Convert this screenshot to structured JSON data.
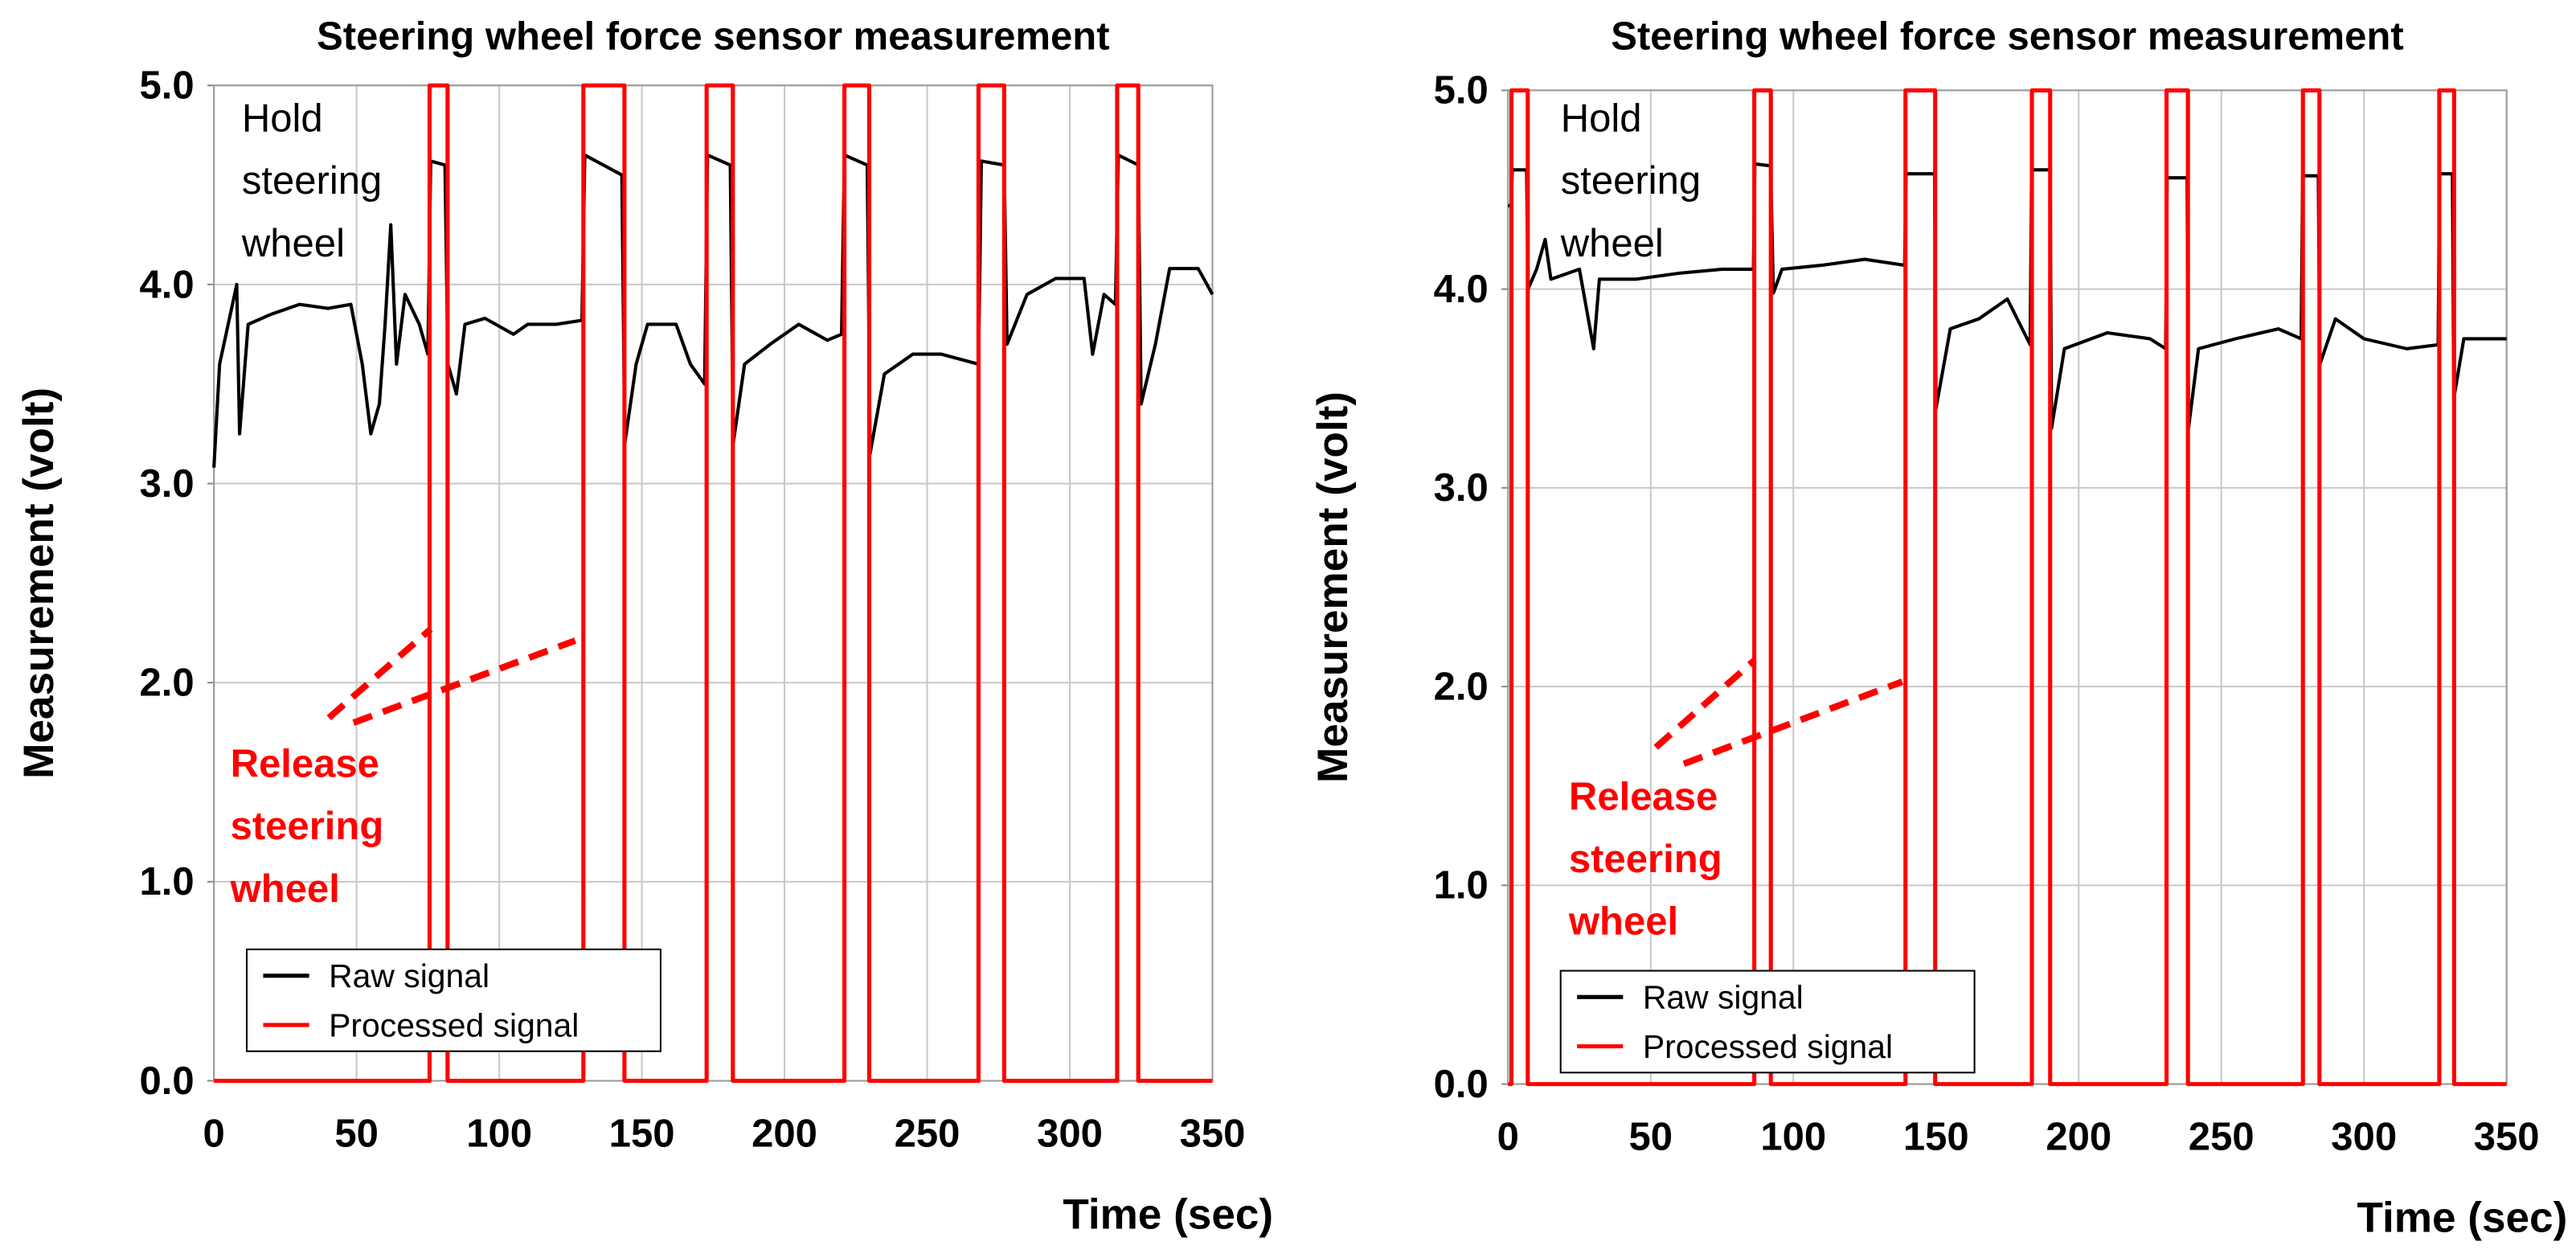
{
  "chart_data": [
    {
      "type": "line",
      "title": "Steering wheel force sensor measurement",
      "x_label": "Time (sec)",
      "y_label": "Measurement (volt)",
      "annotations": [
        {
          "lines": [
            "Hold",
            "steering",
            "wheel"
          ],
          "color": "#000000"
        },
        {
          "lines": [
            "Release",
            "steering",
            "wheel"
          ],
          "color": "#ff0000"
        }
      ],
      "xlim": [
        0,
        350
      ],
      "xticks": [
        0,
        50,
        100,
        150,
        200,
        250,
        300,
        350
      ],
      "ylim": [
        0,
        5
      ],
      "yticks": [
        {
          "value": 0,
          "label": "0.0"
        },
        {
          "value": 1,
          "label": "1.0"
        },
        {
          "value": 2,
          "label": "2.0"
        },
        {
          "value": 3,
          "label": "3.0"
        },
        {
          "value": 4,
          "label": "4.0"
        },
        {
          "value": 5,
          "label": "5.0"
        }
      ],
      "grid": true,
      "legend": "lower left",
      "series": [
        {
          "name": "Raw signal",
          "color": "#000000",
          "x": [
            0,
            2,
            5,
            8,
            9,
            12,
            20,
            30,
            40,
            48,
            52,
            55,
            58,
            60,
            62,
            64,
            67,
            72,
            75,
            76,
            81,
            82,
            85,
            88,
            95,
            105,
            110,
            120,
            129,
            130,
            143,
            144,
            148,
            152,
            162,
            167,
            172,
            173,
            181,
            182,
            186,
            195,
            205,
            215,
            220,
            221,
            229,
            230,
            235,
            245,
            255,
            268,
            269,
            277,
            278,
            285,
            295,
            305,
            308,
            312,
            316,
            317,
            324,
            325,
            330,
            335,
            345,
            350
          ],
          "values": [
            3.08,
            3.6,
            3.8,
            4.0,
            3.25,
            3.8,
            3.85,
            3.9,
            3.88,
            3.9,
            3.6,
            3.25,
            3.4,
            3.8,
            4.3,
            3.6,
            3.95,
            3.8,
            3.65,
            4.62,
            4.6,
            3.6,
            3.45,
            3.8,
            3.83,
            3.75,
            3.8,
            3.8,
            3.82,
            4.65,
            4.55,
            3.2,
            3.6,
            3.8,
            3.8,
            3.6,
            3.5,
            4.65,
            4.6,
            3.2,
            3.6,
            3.7,
            3.8,
            3.72,
            3.75,
            4.65,
            4.6,
            3.15,
            3.55,
            3.65,
            3.65,
            3.6,
            4.62,
            4.6,
            3.7,
            3.95,
            4.03,
            4.03,
            3.65,
            3.95,
            3.9,
            4.65,
            4.6,
            3.4,
            3.7,
            4.08,
            4.08,
            3.95
          ]
        },
        {
          "name": "Processed signal",
          "color": "#ff0000",
          "x": [
            0,
            75.6,
            75.6,
            81.9,
            81.9,
            129.5,
            129.5,
            143.9,
            143.9,
            172.7,
            172.7,
            181.9,
            181.9,
            221,
            221,
            229.7,
            229.7,
            268,
            268,
            277,
            277,
            316.6,
            316.6,
            324,
            324,
            350
          ],
          "values": [
            0,
            0,
            5,
            5,
            0,
            0,
            5,
            5,
            0,
            0,
            5,
            5,
            0,
            0,
            5,
            5,
            0,
            0,
            5,
            5,
            0,
            0,
            5,
            5,
            0,
            0
          ]
        }
      ]
    },
    {
      "type": "line",
      "title": "Steering wheel force sensor measurement",
      "x_label": "Time (sec)",
      "y_label": "Measurement (volt)",
      "annotations": [
        {
          "lines": [
            "Hold",
            "steering",
            "wheel"
          ],
          "color": "#000000"
        },
        {
          "lines": [
            "Release",
            "steering",
            "wheel"
          ],
          "color": "#ff0000"
        }
      ],
      "xlim": [
        0,
        350
      ],
      "xticks": [
        0,
        50,
        100,
        150,
        200,
        250,
        300,
        350
      ],
      "ylim": [
        0,
        5
      ],
      "yticks": [
        {
          "value": 0,
          "label": "0.0"
        },
        {
          "value": 1,
          "label": "1.0"
        },
        {
          "value": 2,
          "label": "2.0"
        },
        {
          "value": 3,
          "label": "3.0"
        },
        {
          "value": 4,
          "label": "4.0"
        },
        {
          "value": 5,
          "label": "5.0"
        }
      ],
      "grid": true,
      "legend": "lower left",
      "series": [
        {
          "name": "Raw signal",
          "color": "#000000",
          "x": [
            0,
            1,
            1.5,
            6.5,
            7,
            10,
            13,
            15,
            25,
            30,
            32,
            45,
            60,
            75,
            86,
            86.5,
            92,
            93,
            96,
            110,
            125,
            139,
            139.5,
            149.5,
            150,
            155,
            165,
            175,
            183,
            183.5,
            190,
            190.5,
            195,
            210,
            225,
            230.5,
            231,
            238,
            238.5,
            242,
            255,
            270,
            278,
            278.5,
            284,
            284.5,
            290,
            300,
            315,
            326,
            326.5,
            331,
            331.5,
            335,
            350
          ],
          "values": [
            4.42,
            4.42,
            4.6,
            4.6,
            4.0,
            4.1,
            4.25,
            4.05,
            4.1,
            3.7,
            4.05,
            4.05,
            4.08,
            4.1,
            4.1,
            4.63,
            4.62,
            3.98,
            4.1,
            4.12,
            4.15,
            4.12,
            4.58,
            4.58,
            3.4,
            3.8,
            3.85,
            3.95,
            3.72,
            4.6,
            4.6,
            3.3,
            3.7,
            3.78,
            3.75,
            3.7,
            4.56,
            4.56,
            3.3,
            3.7,
            3.75,
            3.8,
            3.75,
            4.57,
            4.57,
            3.62,
            3.85,
            3.75,
            3.7,
            3.72,
            4.58,
            4.58,
            3.45,
            3.75,
            3.75
          ]
        },
        {
          "name": "Processed signal",
          "color": "#ff0000",
          "x": [
            0,
            1.2,
            1.2,
            6.9,
            6.9,
            86.3,
            86.3,
            92.1,
            92.1,
            139.3,
            139.3,
            149.7,
            149.7,
            183.6,
            183.6,
            190,
            190,
            230.8,
            230.8,
            238.3,
            238.3,
            278.6,
            278.6,
            284.4,
            284.4,
            326.4,
            326.4,
            331.6,
            331.6,
            350
          ],
          "values": [
            0,
            0,
            5,
            5,
            0,
            0,
            5,
            5,
            0,
            0,
            5,
            5,
            0,
            0,
            5,
            5,
            0,
            0,
            5,
            5,
            0,
            0,
            5,
            5,
            0,
            0,
            5,
            5,
            0,
            0
          ]
        }
      ]
    }
  ]
}
